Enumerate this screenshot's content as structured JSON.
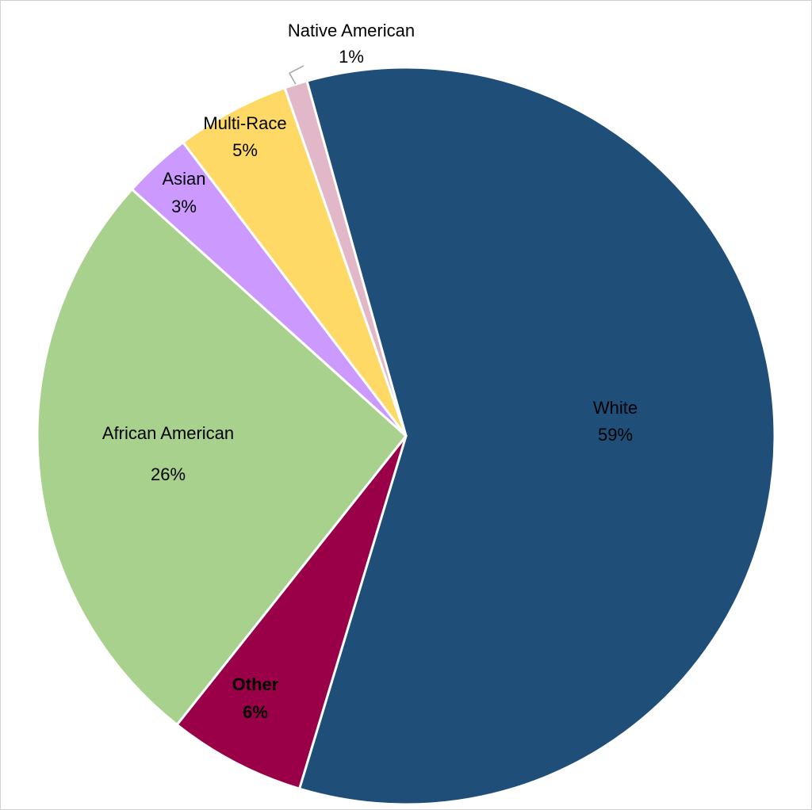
{
  "chart_data": {
    "type": "pie",
    "categories": [
      "White",
      "Other",
      "African American",
      "Asian",
      "Multi-Race",
      "Native American"
    ],
    "values": [
      59,
      6,
      26,
      3,
      5,
      1
    ],
    "value_labels": [
      "59%",
      "6%",
      "26%",
      "3%",
      "5%",
      "1%"
    ],
    "colors": [
      "#1f4e79",
      "#990047",
      "#a9d18e",
      "#cc99ff",
      "#ffd966",
      "#e2b8c8"
    ]
  }
}
